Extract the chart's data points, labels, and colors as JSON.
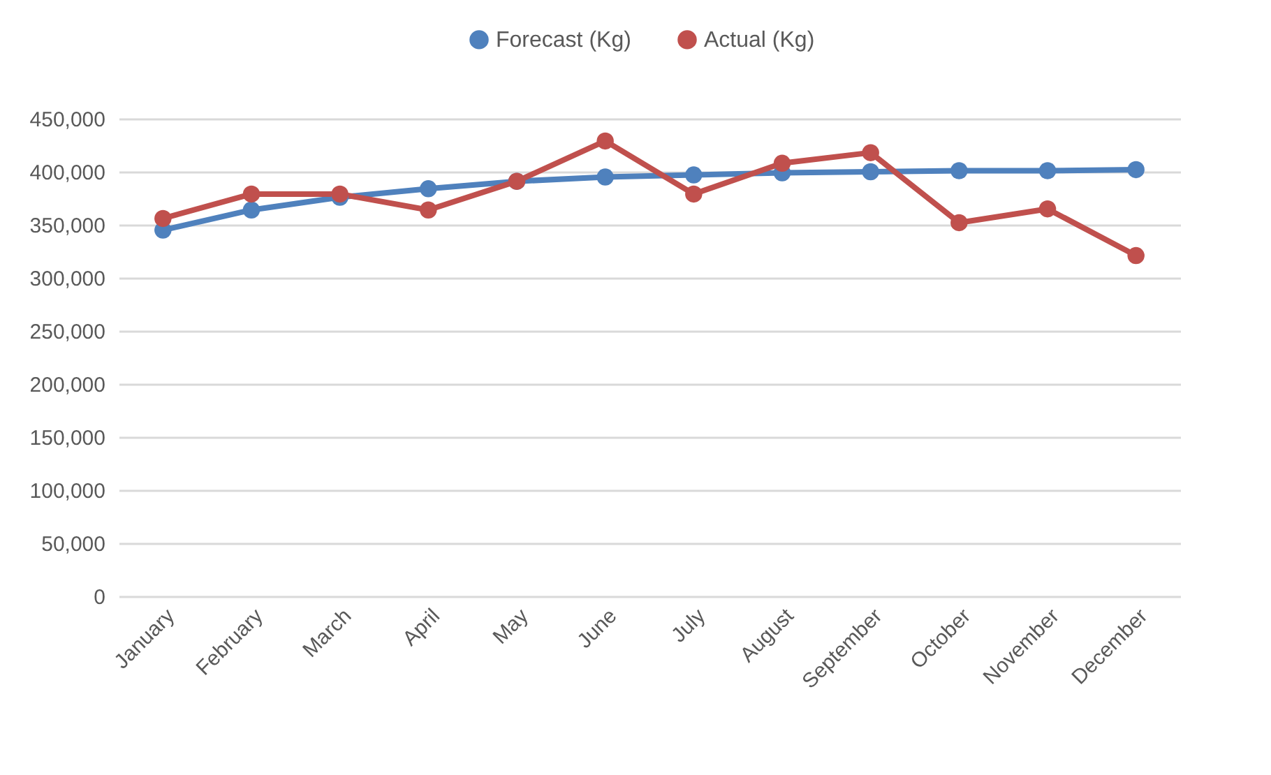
{
  "chart_data": {
    "type": "line",
    "categories": [
      "January",
      "February",
      "March",
      "April",
      "May",
      "June",
      "July",
      "August",
      "September",
      "October",
      "November",
      "December"
    ],
    "series": [
      {
        "name": "Forecast (Kg)",
        "color": "#4f81bd",
        "values": [
          345000,
          364000,
          376000,
          384000,
          391000,
          395000,
          397000,
          399000,
          400000,
          401000,
          401000,
          402000
        ]
      },
      {
        "name": "Actual (Kg)",
        "color": "#c0504d",
        "values": [
          356000,
          379000,
          379000,
          364000,
          391000,
          429000,
          379000,
          408000,
          418000,
          352000,
          365000,
          321000
        ]
      }
    ],
    "ylim": [
      0,
      450000
    ],
    "yticks": [
      0,
      {
        "value": 50000,
        "label": "50,000"
      },
      {
        "value": 100000,
        "label": "100,000"
      },
      {
        "value": 150000,
        "label": "150,000"
      },
      {
        "value": 200000,
        "label": "200,000"
      },
      {
        "value": 250000,
        "label": "250,000"
      },
      {
        "value": 300000,
        "label": "300,000"
      },
      {
        "value": 350000,
        "label": "350,000"
      },
      {
        "value": 400000,
        "label": "400,000"
      },
      {
        "value": 450000,
        "label": "450,000"
      }
    ],
    "grid": "y",
    "legend": "top",
    "marker": "circle",
    "line_style": "solid"
  }
}
